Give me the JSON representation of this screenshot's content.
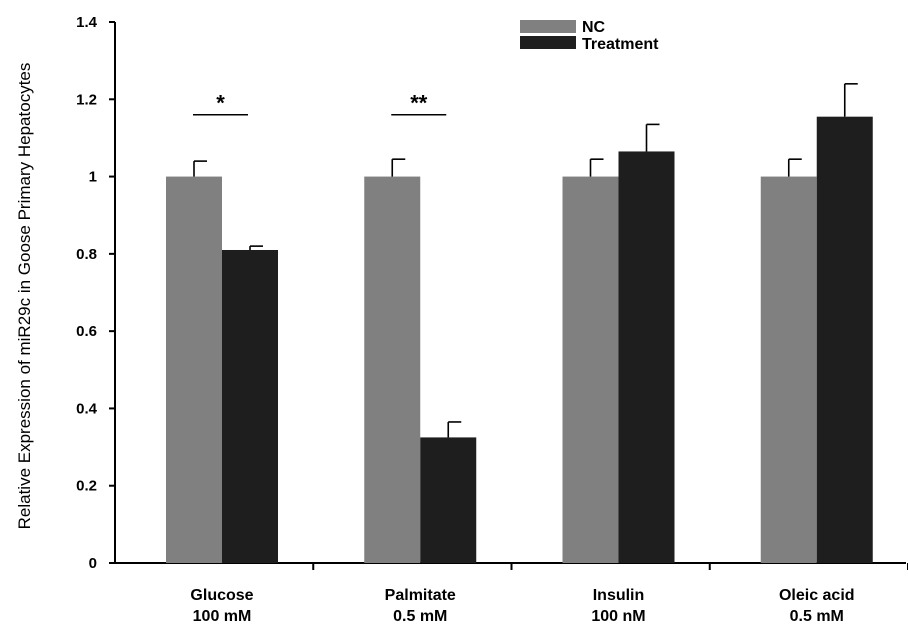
{
  "chart_data": {
    "type": "bar",
    "title": "",
    "xlabel": "",
    "ylabel": "Relative Expression of miR29c in Goose Primary Hepatocytes",
    "ylim": [
      0,
      1.4
    ],
    "yticks": [
      "0",
      "0.2",
      "0.4",
      "0.6",
      "0.8",
      "1",
      "1.2",
      "1.4"
    ],
    "categories": [
      {
        "line1": "Glucose",
        "line2": "100 mM"
      },
      {
        "line1": "Palmitate",
        "line2": "0.5 mM"
      },
      {
        "line1": "Insulin",
        "line2": "100 nM"
      },
      {
        "line1": "Oleic acid",
        "line2": "0.5 mM"
      }
    ],
    "series": [
      {
        "name": "NC",
        "color": "#808080",
        "values": [
          1.0,
          1.0,
          1.0,
          1.0
        ],
        "errors": [
          0.04,
          0.045,
          0.045,
          0.045
        ]
      },
      {
        "name": "Treatment",
        "color": "#1e1e1e",
        "values": [
          0.81,
          0.325,
          1.065,
          1.155
        ],
        "errors": [
          0.01,
          0.04,
          0.07,
          0.085
        ]
      }
    ],
    "legend": "top-center",
    "grid": false,
    "significance": [
      {
        "category": 0,
        "label": "*",
        "y": 1.16
      },
      {
        "category": 1,
        "label": "**",
        "y": 1.16
      }
    ]
  }
}
